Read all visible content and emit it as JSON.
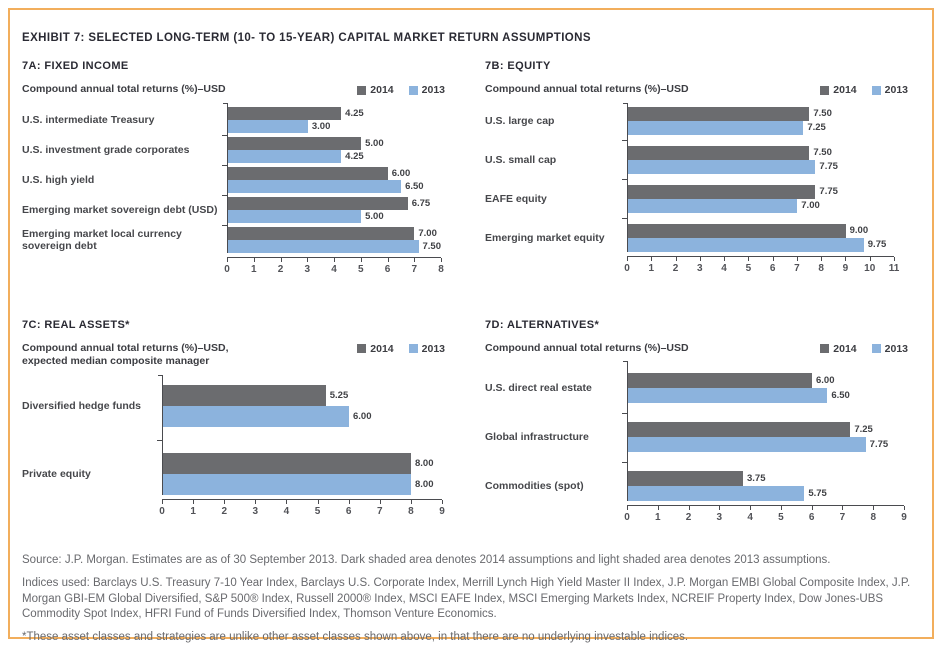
{
  "page": {
    "exhibit_title": "EXHIBIT 7: SELECTED LONG-TERM (10- TO 15-YEAR) CAPITAL MARKET RETURN ASSUMPTIONS"
  },
  "colors": {
    "bar_2014": "#6b6c6f",
    "bar_2013": "#8cb3dd",
    "frame": "#f2ae5c"
  },
  "legend": {
    "s2014": "2014",
    "s2013": "2013"
  },
  "chart_data": [
    {
      "id": "7a",
      "type": "bar",
      "title": "7A: FIXED INCOME",
      "subtitle_lines": [
        "Compound annual total returns (%)–USD"
      ],
      "categories": [
        "U.S. intermediate Treasury",
        "U.S. investment grade corporates",
        "U.S. high yield",
        "Emerging market sovereign debt (USD)",
        "Emerging market local currency sovereign debt"
      ],
      "series": [
        {
          "name": "2014",
          "values": [
            4.25,
            5.0,
            6.0,
            6.75,
            7.0
          ]
        },
        {
          "name": "2013",
          "values": [
            3.0,
            4.25,
            6.5,
            5.0,
            7.5
          ]
        }
      ],
      "xlim": [
        0,
        8
      ],
      "tick_step": 1,
      "grid": false,
      "legend_position": "top-right"
    },
    {
      "id": "7b",
      "type": "bar",
      "title": "7B: EQUITY",
      "subtitle_lines": [
        "Compound annual total returns (%)–USD"
      ],
      "categories": [
        "U.S. large cap",
        "U.S. small cap",
        "EAFE equity",
        "Emerging market equity"
      ],
      "series": [
        {
          "name": "2014",
          "values": [
            7.5,
            7.5,
            7.75,
            9.0
          ]
        },
        {
          "name": "2013",
          "values": [
            7.25,
            7.75,
            7.0,
            9.75
          ]
        }
      ],
      "xlim": [
        0,
        11
      ],
      "tick_step": 1,
      "grid": false,
      "legend_position": "top-right"
    },
    {
      "id": "7c",
      "type": "bar",
      "title": "7C: REAL ASSETS*",
      "subtitle_lines": [
        "Compound annual total returns (%)–USD,",
        "expected median composite manager"
      ],
      "categories": [
        "Diversified hedge funds",
        "Private equity"
      ],
      "series": [
        {
          "name": "2014",
          "values": [
            5.25,
            8.0
          ]
        },
        {
          "name": "2013",
          "values": [
            6.0,
            8.0
          ]
        }
      ],
      "xlim": [
        0,
        9
      ],
      "tick_step": 1,
      "grid": false,
      "legend_position": "top-right"
    },
    {
      "id": "7d",
      "type": "bar",
      "title": "7D: ALTERNATIVES*",
      "subtitle_lines": [
        "Compound annual total returns (%)–USD"
      ],
      "categories": [
        "U.S. direct real estate",
        "Global infrastructure",
        "Commodities (spot)"
      ],
      "series": [
        {
          "name": "2014",
          "values": [
            6.0,
            7.25,
            3.75
          ]
        },
        {
          "name": "2013",
          "values": [
            6.5,
            7.75,
            5.75
          ]
        }
      ],
      "xlim": [
        0,
        9
      ],
      "tick_step": 1,
      "grid": false,
      "legend_position": "top-right"
    }
  ],
  "footer": {
    "source": "Source: J.P. Morgan. Estimates are as of 30 September 2013. Dark shaded area denotes 2014 assumptions and light shaded area denotes 2013 assumptions.",
    "indices": "Indices used: Barclays U.S. Treasury 7-10 Year Index, Barclays U.S. Corporate Index, Merrill Lynch High Yield Master II Index, J.P. Morgan EMBI Global Composite Index, J.P. Morgan GBI-EM Global Diversified, S&P 500® Index, Russell 2000® Index, MSCI EAFE Index, MSCI Emerging Markets Index, NCREIF Property Index, Dow Jones-UBS Commodity Spot Index, HFRI Fund of Funds Diversified Index, Thomson Venture Economics.",
    "note": "*These asset classes and strategies are unlike other asset classes shown above, in that there are no underlying investable indices."
  }
}
